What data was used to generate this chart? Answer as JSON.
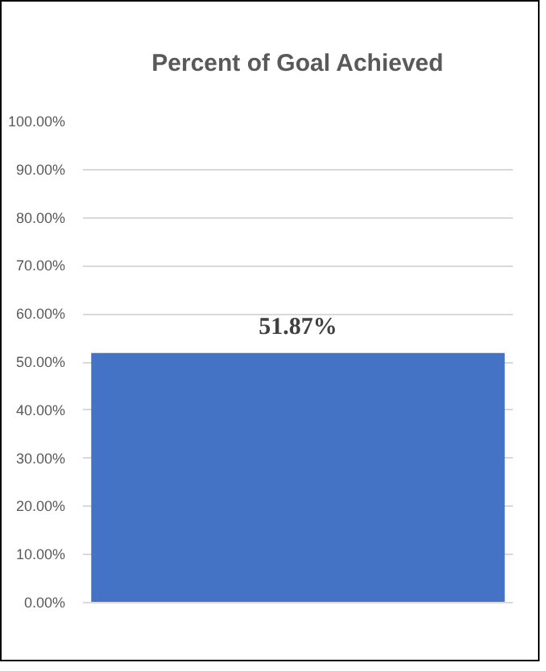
{
  "chart_data": {
    "type": "bar",
    "title": "Percent of Goal Achieved",
    "categories": [
      null
    ],
    "values": [
      51.87
    ],
    "color": "#4472c4",
    "value_labels": [
      "51.87%"
    ],
    "ylim": [
      0,
      100
    ],
    "yticks": [
      {
        "value": 0,
        "label": "0.00%"
      },
      {
        "value": 10,
        "label": "10.00%"
      },
      {
        "value": 20,
        "label": "20.00%"
      },
      {
        "value": 30,
        "label": "30.00%"
      },
      {
        "value": 40,
        "label": "40.00%"
      },
      {
        "value": 50,
        "label": "50.00%"
      },
      {
        "value": 60,
        "label": "60.00%"
      },
      {
        "value": 70,
        "label": "70.00%"
      },
      {
        "value": 80,
        "label": "80.00%"
      },
      {
        "value": 90,
        "label": "90.00%"
      },
      {
        "value": 100,
        "label": "100.00%"
      }
    ],
    "grid": "y"
  }
}
